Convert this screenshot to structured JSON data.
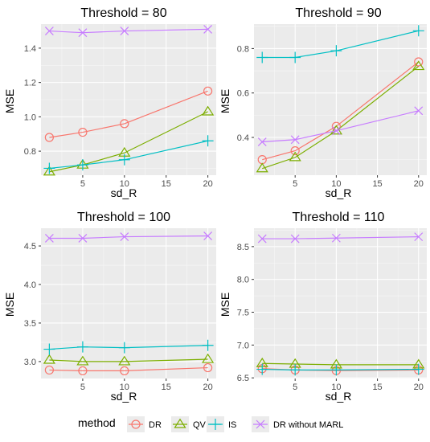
{
  "colors": {
    "DR": "#F8766D",
    "QV": "#7CAE00",
    "IS": "#00BFC4",
    "DR without MARL": "#C77CFF",
    "panel_bg": "#EBEBEB",
    "grid_major": "#FFFFFF"
  },
  "shapes": {
    "DR": "circle-open",
    "QV": "triangle-open",
    "IS": "plus",
    "DR without MARL": "cross"
  },
  "legend": {
    "title": "method",
    "position": "bottom",
    "items": [
      "DR",
      "QV",
      "IS",
      "DR without MARL"
    ]
  },
  "chart_data": [
    {
      "type": "line",
      "title": "Threshold = 80",
      "xlabel": "sd_R",
      "ylabel": "MSE",
      "x": [
        1,
        5,
        10,
        20
      ],
      "xlim": [
        0,
        21
      ],
      "ylim": [
        0.66,
        1.54
      ],
      "xticks": [
        5,
        10,
        15,
        20
      ],
      "yticks": [
        0.8,
        1.0,
        1.2,
        1.4
      ],
      "ytick_labels": [
        "0.8",
        "1.0",
        "1.2",
        "1.4"
      ],
      "grid": true,
      "series": [
        {
          "name": "DR",
          "values": [
            0.88,
            0.91,
            0.96,
            1.15
          ]
        },
        {
          "name": "QV",
          "values": [
            0.68,
            0.72,
            0.79,
            1.03
          ]
        },
        {
          "name": "IS",
          "values": [
            0.7,
            0.72,
            0.75,
            0.86
          ]
        },
        {
          "name": "DR without MARL",
          "values": [
            1.5,
            1.49,
            1.5,
            1.51
          ]
        }
      ]
    },
    {
      "type": "line",
      "title": "Threshold = 90",
      "xlabel": "sd_R",
      "ylabel": "MSE",
      "x": [
        1,
        5,
        10,
        20
      ],
      "xlim": [
        0,
        21
      ],
      "ylim": [
        0.23,
        0.91
      ],
      "xticks": [
        5,
        10,
        15,
        20
      ],
      "yticks": [
        0.4,
        0.6,
        0.8
      ],
      "ytick_labels": [
        "0.4",
        "0.6",
        "0.8"
      ],
      "grid": true,
      "series": [
        {
          "name": "DR",
          "values": [
            0.3,
            0.34,
            0.45,
            0.74
          ]
        },
        {
          "name": "QV",
          "values": [
            0.26,
            0.31,
            0.43,
            0.72
          ]
        },
        {
          "name": "IS",
          "values": [
            0.76,
            0.76,
            0.79,
            0.88
          ]
        },
        {
          "name": "DR without MARL",
          "values": [
            0.38,
            0.39,
            0.43,
            0.52
          ]
        }
      ]
    },
    {
      "type": "line",
      "title": "Threshold = 100",
      "xlabel": "sd_R",
      "ylabel": "MSE",
      "x": [
        1,
        5,
        10,
        20
      ],
      "xlim": [
        0,
        21
      ],
      "ylim": [
        2.78,
        4.73
      ],
      "xticks": [
        5,
        10,
        15,
        20
      ],
      "yticks": [
        3.0,
        3.5,
        4.0,
        4.5
      ],
      "ytick_labels": [
        "3.0",
        "3.5",
        "4.0",
        "4.5"
      ],
      "grid": true,
      "series": [
        {
          "name": "DR",
          "values": [
            2.89,
            2.88,
            2.88,
            2.92
          ]
        },
        {
          "name": "QV",
          "values": [
            3.02,
            3.0,
            3.0,
            3.03
          ]
        },
        {
          "name": "IS",
          "values": [
            3.16,
            3.19,
            3.18,
            3.21
          ]
        },
        {
          "name": "DR without MARL",
          "values": [
            4.6,
            4.6,
            4.62,
            4.63
          ]
        }
      ]
    },
    {
      "type": "line",
      "title": "Threshold = 110",
      "xlabel": "sd_R",
      "ylabel": "MSE",
      "x": [
        1,
        5,
        10,
        20
      ],
      "xlim": [
        0,
        21
      ],
      "ylim": [
        6.49,
        8.78
      ],
      "xticks": [
        5,
        10,
        15,
        20
      ],
      "yticks": [
        6.5,
        7.0,
        7.5,
        8.0,
        8.5
      ],
      "ytick_labels": [
        "6.5",
        "7.0",
        "7.5",
        "8.0",
        "8.5"
      ],
      "grid": true,
      "series": [
        {
          "name": "DR",
          "values": [
            6.64,
            6.62,
            6.61,
            6.62
          ]
        },
        {
          "name": "QV",
          "values": [
            6.72,
            6.71,
            6.7,
            6.7
          ]
        },
        {
          "name": "IS",
          "values": [
            6.63,
            6.62,
            6.62,
            6.63
          ]
        },
        {
          "name": "DR without MARL",
          "values": [
            8.62,
            8.62,
            8.63,
            8.65
          ]
        }
      ]
    }
  ]
}
